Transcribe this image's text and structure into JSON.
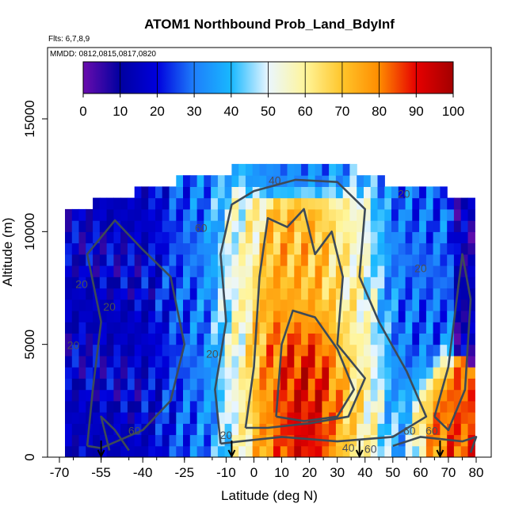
{
  "chart_data": {
    "type": "heatmap",
    "title": "ATOM1 Northbound Prob_Land_BdyInf",
    "annotations": [
      "Flts: 6,7,8,9",
      "MMDD: 0812,0815,0817,0820"
    ],
    "xlabel": "Latitude (deg N)",
    "ylabel": "Altitude (m)",
    "xlim": [
      -70,
      82
    ],
    "ylim": [
      0,
      18000
    ],
    "x_tick_labels": [
      "-70",
      "-55",
      "-40",
      "-25",
      "-10",
      "0",
      "10",
      "20",
      "30",
      "40",
      "50",
      "60",
      "70",
      "80"
    ],
    "y_tick_labels": [
      "0",
      "5000",
      "10000",
      "15000"
    ],
    "colorbar": {
      "ticks": [
        "0",
        "10",
        "20",
        "30",
        "40",
        "50",
        "60",
        "70",
        "80",
        "90",
        "100"
      ],
      "colors": [
        "#6a0dad",
        "#0000a0",
        "#0000dd",
        "#1e7ffb",
        "#18b8ff",
        "#eaf6ff",
        "#fff59a",
        "#ffc52a",
        "#ff8c00",
        "#e60000",
        "#a30000"
      ]
    },
    "contour_labels": [
      "40",
      "20",
      "20",
      "20",
      "20",
      "20",
      "60",
      "60",
      "20",
      "40",
      "60",
      "60",
      "60",
      "20"
    ],
    "flight_marker_lat": [
      -55,
      -8,
      38,
      67
    ],
    "grid": false,
    "legend": "none",
    "region_values": [
      {
        "lat": [
          -65,
          -30
        ],
        "alt": [
          500,
          12000
        ],
        "value": 15
      },
      {
        "lat": [
          -30,
          -12
        ],
        "alt": [
          500,
          12000
        ],
        "value": 32
      },
      {
        "lat": [
          -12,
          0
        ],
        "alt": [
          1500,
          11000
        ],
        "value": 58
      },
      {
        "lat": [
          0,
          10
        ],
        "alt": [
          1000,
          7000
        ],
        "value": 78
      },
      {
        "lat": [
          10,
          30
        ],
        "alt": [
          1000,
          5000
        ],
        "value": 92
      },
      {
        "lat": [
          10,
          25
        ],
        "alt": [
          6000,
          10000
        ],
        "value": 72
      },
      {
        "lat": [
          30,
          45
        ],
        "alt": [
          1000,
          10000
        ],
        "value": 60
      },
      {
        "lat": [
          45,
          62
        ],
        "alt": [
          3000,
          12000
        ],
        "value": 28
      },
      {
        "lat": [
          62,
          78
        ],
        "alt": [
          500,
          3000
        ],
        "value": 85
      },
      {
        "lat": [
          -10,
          40
        ],
        "alt": [
          12000,
          13000
        ],
        "value": 30
      }
    ]
  }
}
